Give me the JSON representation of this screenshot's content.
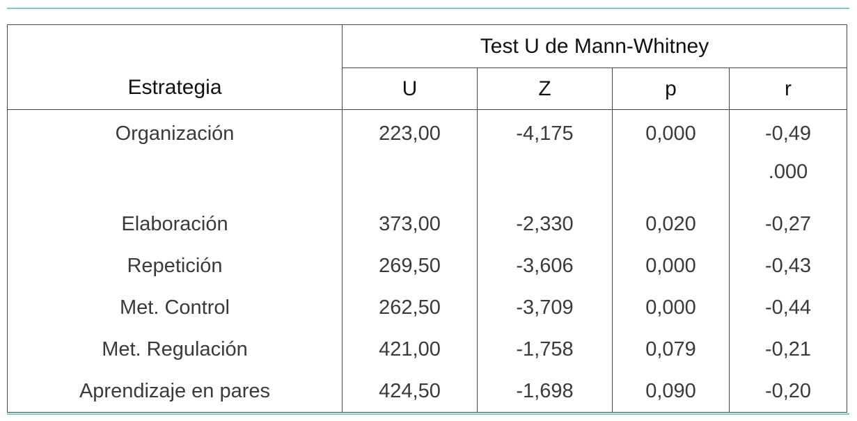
{
  "table": {
    "group_header": "Test U de Mann-Whitney",
    "columns": [
      "Estrategia",
      "U",
      "Z",
      "p",
      "r"
    ],
    "rows": [
      [
        "Organización",
        "223,00",
        "-4,175",
        "0,000",
        [
          "-0,49",
          ".000"
        ]
      ],
      [
        "Elaboración",
        "373,00",
        "-2,330",
        "0,020",
        "-0,27"
      ],
      [
        "Repetición",
        "269,50",
        "-3,606",
        "0,000",
        "-0,43"
      ],
      [
        "Met. Control",
        "262,50",
        "-3,709",
        "0,000",
        "-0,44"
      ],
      [
        "Met. Regulación",
        "421,00",
        "-1,758",
        "0,079",
        "-0,21"
      ],
      [
        "Aprendizaje en pares",
        "424,50",
        "-1,698",
        "0,090",
        "-0,20"
      ]
    ]
  }
}
